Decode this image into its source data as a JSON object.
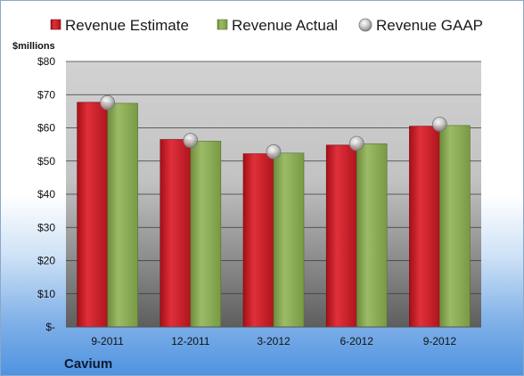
{
  "chart_data": {
    "type": "bar",
    "company": "Cavium",
    "unit_label": "$millions",
    "categories": [
      "9-2011",
      "12-2011",
      "3-2012",
      "6-2012",
      "9-2012"
    ],
    "series": [
      {
        "name": "Revenue Estimate",
        "kind": "bar",
        "color": "#d0202a",
        "values": [
          67.7,
          56.5,
          52.2,
          54.8,
          60.5
        ]
      },
      {
        "name": "Revenue Actual",
        "kind": "bar",
        "color": "#8aaa55",
        "values": [
          67.4,
          56.0,
          52.4,
          55.2,
          60.7
        ]
      },
      {
        "name": "Revenue GAAP",
        "kind": "marker",
        "color": "#b8b8b8",
        "values": [
          67.6,
          56.2,
          52.8,
          55.3,
          61.1
        ]
      }
    ],
    "ylim": [
      0,
      80
    ],
    "yticks": [
      0,
      10,
      20,
      30,
      40,
      50,
      60,
      70,
      80
    ],
    "ytick_labels": [
      "$-",
      "$10",
      "$20",
      "$30",
      "$40",
      "$50",
      "$60",
      "$70",
      "$80"
    ],
    "legend_position": "top",
    "grid": true
  }
}
